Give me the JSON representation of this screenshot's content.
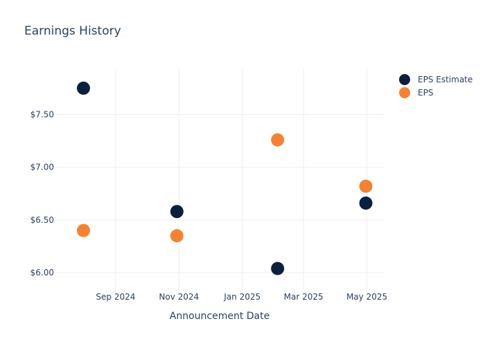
{
  "chart_data": {
    "type": "scatter",
    "title": "Earnings History",
    "xlabel": "Announcement Date",
    "ylabel": "",
    "x_ticks": [
      "2024-09-01",
      "2024-11-01",
      "2025-01-01",
      "2025-03-01",
      "2025-05-01"
    ],
    "x_tick_labels": [
      "Sep 2024",
      "Nov 2024",
      "Jan 2025",
      "Mar 2025",
      "May 2025"
    ],
    "xlim": [
      "2024-07-05",
      "2025-05-18"
    ],
    "y_ticks": [
      6.0,
      6.5,
      7.0,
      7.5
    ],
    "y_tick_labels": [
      "$6.00",
      "$6.50",
      "$7.00",
      "$7.50"
    ],
    "ylim": [
      5.83,
      7.93
    ],
    "grid": true,
    "legend_position": "top-right",
    "series": [
      {
        "name": "EPS Estimate",
        "color": "#0b1f3f",
        "points": [
          {
            "x": "2024-08-01",
            "y": 7.75
          },
          {
            "x": "2024-10-30",
            "y": 6.58
          },
          {
            "x": "2025-02-04",
            "y": 6.04
          },
          {
            "x": "2025-04-30",
            "y": 6.66
          }
        ]
      },
      {
        "name": "EPS",
        "color": "#f58232",
        "points": [
          {
            "x": "2024-08-01",
            "y": 6.4
          },
          {
            "x": "2024-10-30",
            "y": 6.35
          },
          {
            "x": "2025-02-04",
            "y": 7.26
          },
          {
            "x": "2025-04-30",
            "y": 6.82
          }
        ]
      }
    ]
  }
}
